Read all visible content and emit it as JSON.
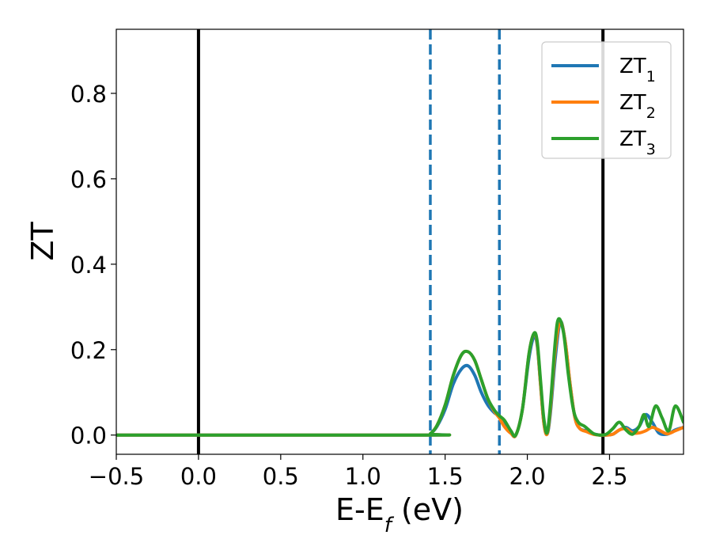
{
  "chart_data": {
    "type": "line",
    "xlabel": "E-E_f (eV)",
    "ylabel": "ZT",
    "xlim": [
      -0.5,
      2.95
    ],
    "ylim": [
      -0.045,
      0.95
    ],
    "x_ticks": [
      -0.5,
      0.0,
      0.5,
      1.0,
      1.5,
      2.0,
      2.5
    ],
    "x_tick_labels": [
      "−0.5",
      "0.0",
      "0.5",
      "1.0",
      "1.5",
      "2.0",
      "2.5"
    ],
    "y_ticks": [
      0.0,
      0.2,
      0.4,
      0.6,
      0.8
    ],
    "y_tick_labels": [
      "0.0",
      "0.2",
      "0.4",
      "0.6",
      "0.8"
    ],
    "grid": false,
    "legend": {
      "position": "top-right"
    },
    "vertical_lines": [
      {
        "x": 0.0,
        "style": "solid",
        "color": "#000000"
      },
      {
        "x": 2.46,
        "style": "solid",
        "color": "#000000"
      },
      {
        "x": 1.41,
        "style": "dashed",
        "color": "#1f77b4"
      },
      {
        "x": 1.83,
        "style": "dashed",
        "color": "#1f77b4"
      }
    ],
    "series": [
      {
        "name": "ZT₁",
        "label_base": "ZT",
        "label_sub": "1",
        "color": "#1f77b4",
        "x": [
          -0.5,
          1.38,
          1.41,
          1.45,
          1.5,
          1.55,
          1.6,
          1.64,
          1.68,
          1.72,
          1.76,
          1.8,
          1.83,
          1.86,
          1.9,
          1.93,
          1.97,
          2.01,
          2.04,
          2.06,
          2.08,
          2.1,
          2.12,
          2.14,
          2.17,
          2.2,
          2.23,
          2.26,
          2.29,
          2.32,
          2.36,
          2.4,
          2.44,
          2.48,
          2.52,
          2.56,
          2.6,
          2.64,
          2.68,
          2.72,
          2.76,
          2.8,
          2.85,
          2.9,
          2.95
        ],
        "y": [
          0.0,
          0.0,
          0.003,
          0.02,
          0.06,
          0.12,
          0.155,
          0.162,
          0.14,
          0.1,
          0.07,
          0.052,
          0.045,
          0.025,
          0.005,
          0.0,
          0.06,
          0.18,
          0.23,
          0.21,
          0.12,
          0.03,
          0.002,
          0.05,
          0.18,
          0.265,
          0.22,
          0.12,
          0.04,
          0.015,
          0.01,
          0.003,
          0.0,
          0.0,
          0.002,
          0.012,
          0.018,
          0.01,
          0.02,
          0.048,
          0.03,
          0.005,
          0.002,
          0.012,
          0.018
        ]
      },
      {
        "name": "ZT₂",
        "label_base": "ZT",
        "label_sub": "2",
        "color": "#ff7f0e",
        "x": [
          -0.5,
          1.38,
          1.41,
          1.45,
          1.5,
          1.55,
          1.6,
          1.64,
          1.68,
          1.72,
          1.76,
          1.8,
          1.83,
          1.86,
          1.9,
          1.93,
          1.97,
          2.01,
          2.04,
          2.06,
          2.08,
          2.1,
          2.12,
          2.14,
          2.17,
          2.2,
          2.23,
          2.26,
          2.29,
          2.32,
          2.36,
          2.4,
          2.44,
          2.48,
          2.52,
          2.56,
          2.6,
          2.64,
          2.68,
          2.72,
          2.76,
          2.8,
          2.85,
          2.9,
          2.95
        ],
        "y": [
          0.0,
          0.0,
          0.003,
          0.022,
          0.07,
          0.14,
          0.188,
          0.195,
          0.175,
          0.13,
          0.085,
          0.055,
          0.04,
          0.02,
          0.004,
          0.0,
          0.06,
          0.19,
          0.237,
          0.215,
          0.12,
          0.03,
          0.002,
          0.06,
          0.2,
          0.265,
          0.22,
          0.12,
          0.04,
          0.015,
          0.008,
          0.002,
          0.0,
          0.0,
          0.002,
          0.012,
          0.015,
          0.005,
          0.005,
          0.01,
          0.018,
          0.012,
          0.003,
          0.01,
          0.018
        ]
      },
      {
        "name": "ZT₃",
        "label_base": "ZT",
        "label_sub": "3",
        "color": "#2ca02c",
        "x": [
          -0.5,
          1.38,
          1.41,
          1.45,
          1.5,
          1.55,
          1.6,
          1.64,
          1.68,
          1.72,
          1.76,
          1.8,
          1.83,
          1.86,
          1.9,
          1.93,
          1.97,
          2.01,
          2.04,
          2.06,
          2.08,
          2.1,
          2.12,
          2.14,
          2.17,
          2.19,
          2.22,
          2.25,
          2.28,
          2.31,
          2.35,
          2.4,
          2.44,
          2.48,
          2.52,
          2.56,
          2.6,
          2.64,
          2.68,
          2.71,
          2.74,
          2.78,
          2.82,
          2.86,
          2.9,
          2.95
        ],
        "y": [
          0.0,
          0.0,
          0.003,
          0.022,
          0.07,
          0.14,
          0.188,
          0.195,
          0.175,
          0.13,
          0.085,
          0.058,
          0.045,
          0.035,
          0.01,
          0.0,
          0.06,
          0.19,
          0.238,
          0.22,
          0.13,
          0.04,
          0.005,
          0.07,
          0.22,
          0.272,
          0.24,
          0.14,
          0.06,
          0.03,
          0.02,
          0.004,
          0.0,
          0.002,
          0.015,
          0.03,
          0.012,
          0.002,
          0.02,
          0.048,
          0.02,
          0.068,
          0.04,
          0.01,
          0.068,
          0.03
        ]
      }
    ]
  }
}
